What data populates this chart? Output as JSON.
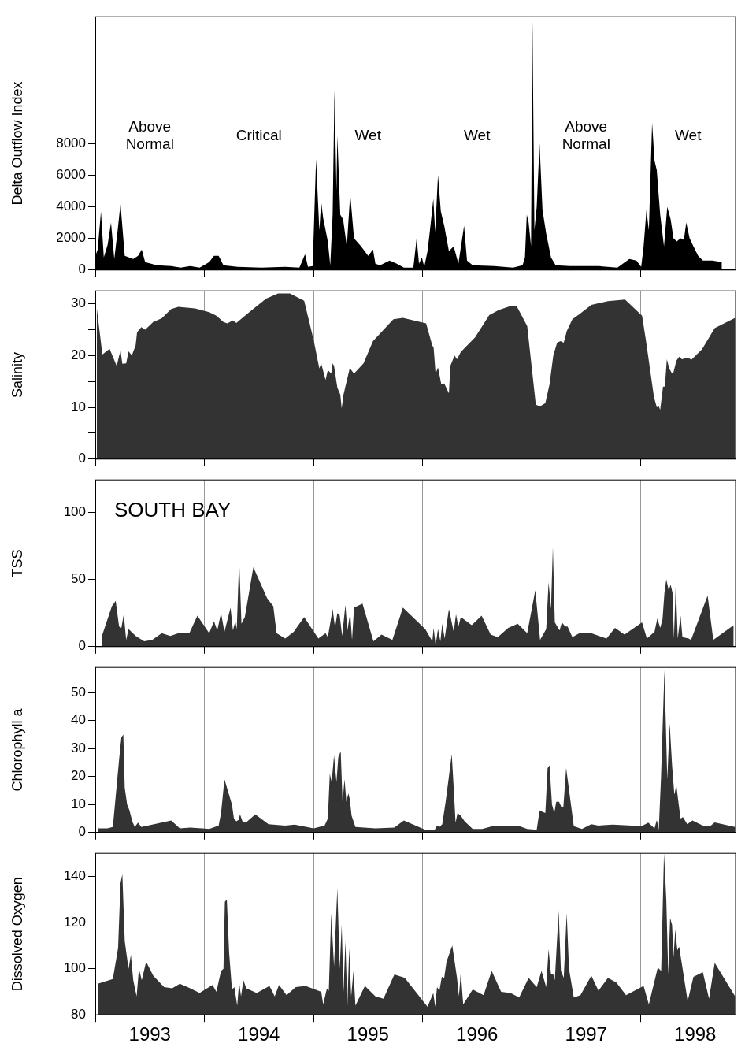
{
  "chart_data": [
    {
      "type": "area",
      "color": "#000000",
      "ylabel": "Delta Outflow Index",
      "xlim": [
        1993,
        1998.87
      ],
      "ylim": [
        0,
        16000
      ],
      "yticks": [
        0,
        2000,
        4000,
        6000,
        8000
      ],
      "xticks": [
        {
          "value": 1993,
          "label": null
        },
        {
          "value": 1994,
          "label": null
        },
        {
          "value": 1995,
          "label": null
        },
        {
          "value": 1996,
          "label": null
        },
        {
          "value": 1997,
          "label": null
        },
        {
          "value": 1998,
          "label": null
        }
      ],
      "grid": false,
      "tick_labels": "y",
      "annotations": [
        "Above Normal",
        "Critical",
        "Wet",
        "Wet",
        "Above Normal",
        "Wet"
      ],
      "x": [
        1993.0,
        1993.022,
        1993.052,
        1993.078,
        1993.113,
        1993.144,
        1993.174,
        1993.205,
        1993.231,
        1993.27,
        1993.348,
        1993.392,
        1993.426,
        1993.457,
        1993.566,
        1993.696,
        1993.783,
        1993.87,
        1993.957,
        1994.044,
        1994.088,
        1994.131,
        1994.175,
        1994.305,
        1994.523,
        1994.741,
        1994.871,
        1994.923,
        1994.95,
        1994.993,
        1995.024,
        1995.054,
        1995.071,
        1995.089,
        1995.132,
        1995.154,
        1995.176,
        1995.193,
        1995.211,
        1995.219,
        1995.246,
        1995.272,
        1995.306,
        1995.337,
        1995.372,
        1995.437,
        1995.502,
        1995.546,
        1995.568,
        1995.611,
        1995.698,
        1995.764,
        1995.829,
        1995.916,
        1995.946,
        1995.968,
        1995.994,
        1996.016,
        1996.046,
        1996.068,
        1996.099,
        1996.116,
        1996.142,
        1996.168,
        1996.199,
        1996.242,
        1996.286,
        1996.329,
        1996.381,
        1996.408,
        1996.46,
        1996.656,
        1996.83,
        1996.917,
        1996.939,
        1996.956,
        1996.973,
        1996.995,
        1997.008,
        1997.026,
        1997.047,
        1997.073,
        1997.1,
        1997.134,
        1997.178,
        1997.221,
        1997.352,
        1997.613,
        1997.787,
        1997.896,
        1997.961,
        1998.005,
        1998.027,
        1998.053,
        1998.075,
        1998.105,
        1998.127,
        1998.148,
        1998.179,
        1998.214,
        1998.244,
        1998.275,
        1998.301,
        1998.331,
        1998.366,
        1998.396,
        1998.418,
        1998.449,
        1998.484,
        1998.527,
        1998.571,
        1998.658,
        1998.745
      ],
      "values": [
        900,
        1300,
        3700,
        800,
        1600,
        3000,
        700,
        2500,
        4200,
        900,
        700,
        900,
        1300,
        500,
        300,
        250,
        150,
        250,
        150,
        500,
        900,
        900,
        300,
        200,
        150,
        200,
        150,
        1000,
        200,
        250,
        7000,
        2500,
        4300,
        3300,
        1800,
        300,
        3500,
        11400,
        5000,
        8500,
        3500,
        3200,
        1500,
        4800,
        2000,
        1500,
        900,
        1300,
        400,
        300,
        600,
        400,
        150,
        150,
        2000,
        400,
        800,
        200,
        1200,
        2500,
        4500,
        2400,
        6000,
        3700,
        2800,
        1200,
        1500,
        400,
        2800,
        600,
        300,
        250,
        150,
        300,
        800,
        3500,
        3000,
        1500,
        15800,
        2500,
        4000,
        8000,
        3800,
        2300,
        800,
        300,
        250,
        250,
        150,
        700,
        600,
        200,
        1500,
        3800,
        2500,
        9300,
        6900,
        6300,
        3500,
        1500,
        4000,
        3200,
        2000,
        1800,
        2000,
        1900,
        3000,
        2000,
        1500,
        900,
        600,
        600,
        500
      ]
    },
    {
      "type": "area",
      "color": "#333333",
      "ylabel": "Salinity",
      "xlim": [
        1993,
        1998.87
      ],
      "ylim": [
        0,
        32.5
      ],
      "yticks": [
        0,
        {
          "value": 5,
          "label": null
        },
        10,
        {
          "value": 15,
          "label": null
        },
        20,
        {
          "value": 25,
          "label": null
        },
        30
      ],
      "xticks": [
        {
          "value": 1993,
          "label": null
        },
        {
          "value": 1994,
          "label": null
        },
        {
          "value": 1995,
          "label": null
        },
        {
          "value": 1996,
          "label": null
        },
        {
          "value": 1997,
          "label": null
        },
        {
          "value": 1998,
          "label": null
        }
      ],
      "grid": "x",
      "tick_labels": "y",
      "x": [
        1993.013,
        1993.065,
        1993.131,
        1993.196,
        1993.231,
        1993.248,
        1993.283,
        1993.305,
        1993.335,
        1993.37,
        1993.383,
        1993.422,
        1993.457,
        1993.531,
        1993.609,
        1993.696,
        1993.762,
        1993.914,
        1994.044,
        1994.11,
        1994.175,
        1994.21,
        1994.262,
        1994.293,
        1994.349,
        1994.436,
        1994.567,
        1994.676,
        1994.784,
        1994.915,
        1995.002,
        1995.054,
        1995.071,
        1995.111,
        1995.132,
        1995.163,
        1995.176,
        1995.189,
        1995.219,
        1995.246,
        1995.259,
        1995.276,
        1995.333,
        1995.372,
        1995.459,
        1995.546,
        1995.733,
        1995.82,
        1996.033,
        1996.089,
        1996.102,
        1996.12,
        1996.142,
        1996.172,
        1996.199,
        1996.242,
        1996.255,
        1996.294,
        1996.316,
        1996.351,
        1996.482,
        1996.612,
        1996.699,
        1996.795,
        1996.865,
        1996.96,
        1997.039,
        1997.078,
        1997.126,
        1997.165,
        1997.199,
        1997.234,
        1997.265,
        1997.295,
        1997.322,
        1997.374,
        1997.439,
        1997.548,
        1997.7,
        1997.857,
        1998.013,
        1998.048,
        1998.122,
        1998.148,
        1998.166,
        1998.179,
        1998.205,
        1998.222,
        1998.24,
        1998.262,
        1998.288,
        1998.301,
        1998.327,
        1998.353,
        1998.379,
        1998.431,
        1998.466,
        1998.562,
        1998.679,
        1998.866
      ],
      "values": [
        29.3,
        20.2,
        21.3,
        18,
        21,
        18.4,
        18.5,
        20.8,
        20,
        22,
        24.5,
        25.5,
        25,
        26.5,
        27.2,
        29,
        29.4,
        29.1,
        28.4,
        27.7,
        26.5,
        26.2,
        26.8,
        26.3,
        27.3,
        28.8,
        31,
        32,
        32,
        30.6,
        23,
        17.5,
        18.5,
        15.3,
        17.2,
        16.5,
        18.5,
        18,
        13.8,
        12.5,
        9.8,
        12.5,
        17.6,
        16.5,
        18.5,
        22.8,
        27,
        27.3,
        26.2,
        22,
        21.5,
        16.5,
        17.7,
        14.5,
        14.6,
        12.7,
        18,
        20,
        19.3,
        20.7,
        23.5,
        27.8,
        28.8,
        29.5,
        29.5,
        25.7,
        10.5,
        10.2,
        10.8,
        14.5,
        20,
        22.5,
        22.8,
        22.5,
        24.7,
        27,
        28,
        29.8,
        30.5,
        30.8,
        27.7,
        23,
        12,
        10,
        10.2,
        9.5,
        14,
        14,
        19.3,
        17.5,
        16.5,
        16.8,
        19,
        19.8,
        19.3,
        19.6,
        19.2,
        21.2,
        25.3,
        27.3
      ]
    },
    {
      "type": "area",
      "color": "#333333",
      "ylabel": "TSS",
      "xlim": [
        1993,
        1998.87
      ],
      "ylim": [
        0,
        124
      ],
      "yticks": [
        0,
        50,
        100
      ],
      "xticks": [
        {
          "value": 1993,
          "label": null
        },
        {
          "value": 1994,
          "label": null
        },
        {
          "value": 1995,
          "label": null
        },
        {
          "value": 1996,
          "label": null
        },
        {
          "value": 1997,
          "label": null
        },
        {
          "value": 1998,
          "label": null
        }
      ],
      "grid": "x",
      "tick_labels": "y",
      "annotations": [
        "SOUTH BAY"
      ],
      "x": [
        1993.065,
        1993.152,
        1993.187,
        1993.218,
        1993.239,
        1993.261,
        1993.283,
        1993.305,
        1993.37,
        1993.448,
        1993.522,
        1993.609,
        1993.688,
        1993.762,
        1993.862,
        1993.936,
        1994.044,
        1994.088,
        1994.118,
        1994.153,
        1994.184,
        1994.24,
        1994.262,
        1994.284,
        1994.297,
        1994.319,
        1994.34,
        1994.371,
        1994.449,
        1994.575,
        1994.632,
        1994.662,
        1994.741,
        1994.819,
        1994.915,
        1995.045,
        1995.111,
        1995.132,
        1995.176,
        1995.198,
        1995.219,
        1995.241,
        1995.263,
        1995.293,
        1995.311,
        1995.337,
        1995.354,
        1995.372,
        1995.45,
        1995.55,
        1995.624,
        1995.724,
        1995.82,
        1996.025,
        1996.09,
        1996.102,
        1996.12,
        1996.142,
        1996.164,
        1996.181,
        1996.203,
        1996.242,
        1996.286,
        1996.307,
        1996.329,
        1996.351,
        1996.451,
        1996.542,
        1996.625,
        1996.69,
        1996.786,
        1996.873,
        1996.96,
        1997.034,
        1997.078,
        1997.134,
        1997.156,
        1997.178,
        1997.195,
        1997.213,
        1997.256,
        1997.278,
        1997.308,
        1997.33,
        1997.374,
        1997.439,
        1997.548,
        1997.687,
        1997.765,
        1997.852,
        1998.013,
        1998.057,
        1998.127,
        1998.153,
        1998.179,
        1998.2,
        1998.218,
        1998.235,
        1998.257,
        1998.275,
        1998.292,
        1998.305,
        1998.322,
        1998.34,
        1998.366,
        1998.383,
        1998.44,
        1998.462,
        1998.614,
        1998.666,
        1998.853
      ],
      "values": [
        9,
        30,
        34,
        15,
        14,
        24,
        5,
        13,
        8,
        4,
        5,
        10,
        8,
        10,
        10,
        23,
        10,
        19,
        12,
        25,
        11,
        29,
        12,
        19,
        13,
        65,
        17,
        22,
        59,
        36,
        30,
        10,
        6,
        11,
        22,
        6,
        10,
        7,
        28,
        14,
        25,
        23,
        8,
        31,
        12,
        25,
        5,
        29,
        32,
        4,
        9,
        5,
        29,
        13,
        4,
        14,
        1,
        13,
        4,
        17,
        6,
        28,
        11,
        24,
        15,
        22,
        16,
        23,
        9,
        7,
        14,
        17,
        10,
        42,
        5,
        13,
        48,
        28,
        74,
        18,
        12,
        18,
        15,
        15,
        7,
        10,
        10,
        6,
        14,
        9,
        18,
        6,
        11,
        21,
        14,
        20,
        40,
        50,
        42,
        46,
        40,
        6,
        47,
        6,
        23,
        7,
        6,
        5,
        38,
        5,
        16
      ]
    },
    {
      "type": "area",
      "color": "#333333",
      "ylabel": "Chlorophyll a",
      "xlim": [
        1993,
        1998.87
      ],
      "ylim": [
        0,
        59
      ],
      "yticks": [
        0,
        10,
        20,
        30,
        40,
        50
      ],
      "xticks": [
        {
          "value": 1993,
          "label": null
        },
        {
          "value": 1994,
          "label": null
        },
        {
          "value": 1995,
          "label": null
        },
        {
          "value": 1996,
          "label": null
        },
        {
          "value": 1997,
          "label": null
        },
        {
          "value": 1998,
          "label": null
        }
      ],
      "grid": "x",
      "tick_labels": "y",
      "x": [
        1993.022,
        1993.109,
        1993.161,
        1993.218,
        1993.239,
        1993.257,
        1993.27,
        1993.292,
        1993.313,
        1993.339,
        1993.361,
        1993.392,
        1993.422,
        1993.696,
        1993.775,
        1993.87,
        1994.044,
        1994.131,
        1994.153,
        1994.184,
        1994.253,
        1994.271,
        1994.293,
        1994.314,
        1994.327,
        1994.349,
        1994.38,
        1994.467,
        1994.588,
        1994.741,
        1994.828,
        1995.002,
        1995.102,
        1995.132,
        1995.15,
        1995.167,
        1995.189,
        1995.211,
        1995.228,
        1995.25,
        1995.267,
        1995.285,
        1995.302,
        1995.32,
        1995.333,
        1995.35,
        1995.385,
        1995.568,
        1995.742,
        1995.829,
        1996.025,
        1996.112,
        1996.133,
        1996.155,
        1996.181,
        1996.212,
        1996.242,
        1996.268,
        1996.286,
        1996.303,
        1996.321,
        1996.351,
        1996.386,
        1996.46,
        1996.547,
        1996.634,
        1996.721,
        1996.808,
        1996.895,
        1996.96,
        1997.047,
        1997.073,
        1997.126,
        1997.147,
        1997.165,
        1997.187,
        1997.208,
        1997.226,
        1997.252,
        1997.274,
        1997.291,
        1997.317,
        1997.387,
        1997.461,
        1997.548,
        1997.613,
        1997.744,
        1997.918,
        1998.005,
        1998.07,
        1998.127,
        1998.148,
        1998.166,
        1998.187,
        1998.218,
        1998.244,
        1998.266,
        1998.288,
        1998.309,
        1998.327,
        1998.349,
        1998.366,
        1998.388,
        1998.427,
        1998.475,
        1998.57,
        1998.636,
        1998.679,
        1998.866
      ],
      "values": [
        1.5,
        1.5,
        2,
        26,
        34,
        35,
        16,
        10,
        8,
        4,
        2,
        3.5,
        2,
        4.3,
        1.5,
        1.8,
        1.3,
        2.5,
        7,
        19,
        10,
        5,
        4,
        4.5,
        6.5,
        4,
        3.5,
        6.5,
        3,
        2.5,
        2.8,
        1.5,
        2.5,
        5,
        21,
        18,
        27.5,
        18,
        27,
        29,
        11,
        19,
        11,
        14,
        12,
        6,
        2,
        1.5,
        1.8,
        4.3,
        1,
        1,
        2.5,
        2,
        3,
        11,
        20,
        28,
        16,
        3.5,
        7,
        6,
        4,
        1.3,
        1.3,
        2.2,
        2.2,
        2.5,
        2.2,
        1.3,
        1,
        7.8,
        7,
        23,
        24,
        10,
        7,
        11,
        11,
        9,
        9,
        23,
        2.3,
        1.3,
        3,
        2.5,
        2.8,
        2.5,
        2.2,
        3.5,
        1.5,
        4.5,
        1,
        20,
        58,
        19,
        39,
        24,
        13.5,
        17,
        10,
        5,
        5.5,
        3,
        4.3,
        2.5,
        2.3,
        3.6,
        2
      ]
    },
    {
      "type": "area",
      "color": "#333333",
      "ylabel": "Dissolved Oxygen",
      "xlim": [
        1993,
        1998.87
      ],
      "ylim": [
        80,
        150
      ],
      "yticks": [
        80,
        100,
        120,
        140
      ],
      "xticks": [
        {
          "value": 1993,
          "label": null
        },
        {
          "value": 1993.5,
          "label": "1993"
        },
        {
          "value": 1994,
          "label": null
        },
        {
          "value": 1994.5,
          "label": "1994"
        },
        {
          "value": 1995,
          "label": null
        },
        {
          "value": 1995.5,
          "label": "1995"
        },
        {
          "value": 1996,
          "label": null
        },
        {
          "value": 1996.5,
          "label": "1996"
        },
        {
          "value": 1997,
          "label": null
        },
        {
          "value": 1997.5,
          "label": "1997"
        },
        {
          "value": 1998,
          "label": null
        },
        {
          "value": 1998.5,
          "label": "1998"
        }
      ],
      "grid": "x",
      "x": [
        1993.022,
        1993.161,
        1993.209,
        1993.231,
        1993.248,
        1993.27,
        1993.287,
        1993.305,
        1993.326,
        1993.348,
        1993.379,
        1993.4,
        1993.426,
        1993.466,
        1993.531,
        1993.631,
        1993.705,
        1993.775,
        1993.87,
        1993.957,
        1994.075,
        1994.11,
        1994.153,
        1994.175,
        1994.188,
        1994.206,
        1994.227,
        1994.253,
        1994.275,
        1994.301,
        1994.319,
        1994.336,
        1994.358,
        1994.384,
        1994.48,
        1994.597,
        1994.645,
        1994.684,
        1994.754,
        1994.837,
        1994.928,
        1995.072,
        1995.089,
        1995.124,
        1995.141,
        1995.163,
        1995.189,
        1995.219,
        1995.241,
        1995.259,
        1995.276,
        1995.293,
        1995.311,
        1995.328,
        1995.346,
        1995.367,
        1995.385,
        1995.472,
        1995.568,
        1995.642,
        1995.742,
        1995.837,
        1996.046,
        1996.099,
        1996.116,
        1996.133,
        1996.155,
        1996.177,
        1996.199,
        1996.22,
        1996.273,
        1996.316,
        1996.334,
        1996.351,
        1996.373,
        1996.46,
        1996.56,
        1996.634,
        1996.721,
        1996.808,
        1996.886,
        1996.973,
        1997.047,
        1997.091,
        1997.134,
        1997.156,
        1997.178,
        1997.199,
        1997.213,
        1997.248,
        1997.269,
        1997.295,
        1997.322,
        1997.343,
        1997.387,
        1997.448,
        1997.548,
        1997.613,
        1997.7,
        1997.778,
        1997.866,
        1998.027,
        1998.075,
        1998.157,
        1998.188,
        1998.214,
        1998.235,
        1998.253,
        1998.27,
        1998.288,
        1998.301,
        1998.318,
        1998.336,
        1998.353,
        1998.431,
        1998.484,
        1998.57,
        1998.627,
        1998.679,
        1998.866
      ],
      "values": [
        93.5,
        95.5,
        109,
        137,
        141,
        112,
        106,
        100,
        106,
        95,
        88,
        100,
        95,
        103,
        97,
        92,
        91.5,
        93.5,
        91.5,
        89.5,
        93,
        90,
        99,
        100,
        129,
        130,
        107,
        91,
        92,
        84,
        94,
        88,
        95,
        91.5,
        89.5,
        92.5,
        88,
        93,
        88.5,
        92,
        92.5,
        90,
        84.5,
        91.5,
        90.5,
        124,
        101,
        135,
        100,
        119,
        90,
        112,
        84,
        109,
        88,
        99,
        84,
        92.5,
        88,
        87,
        97.5,
        96,
        83.5,
        89.5,
        83.5,
        92,
        90.5,
        96.5,
        96,
        103,
        110,
        96,
        88,
        98.5,
        84.5,
        91,
        88.5,
        99,
        90,
        89.5,
        87.5,
        96,
        92,
        99,
        92,
        108.5,
        97.5,
        97.5,
        95,
        125,
        99,
        96,
        124,
        100,
        87.5,
        88.5,
        97,
        90.5,
        96,
        94,
        88.5,
        92.5,
        84.5,
        100.5,
        99,
        150,
        130,
        97.5,
        122,
        119,
        105,
        117,
        108,
        109.5,
        86,
        96.5,
        98.5,
        87,
        102.5,
        88
      ]
    }
  ]
}
